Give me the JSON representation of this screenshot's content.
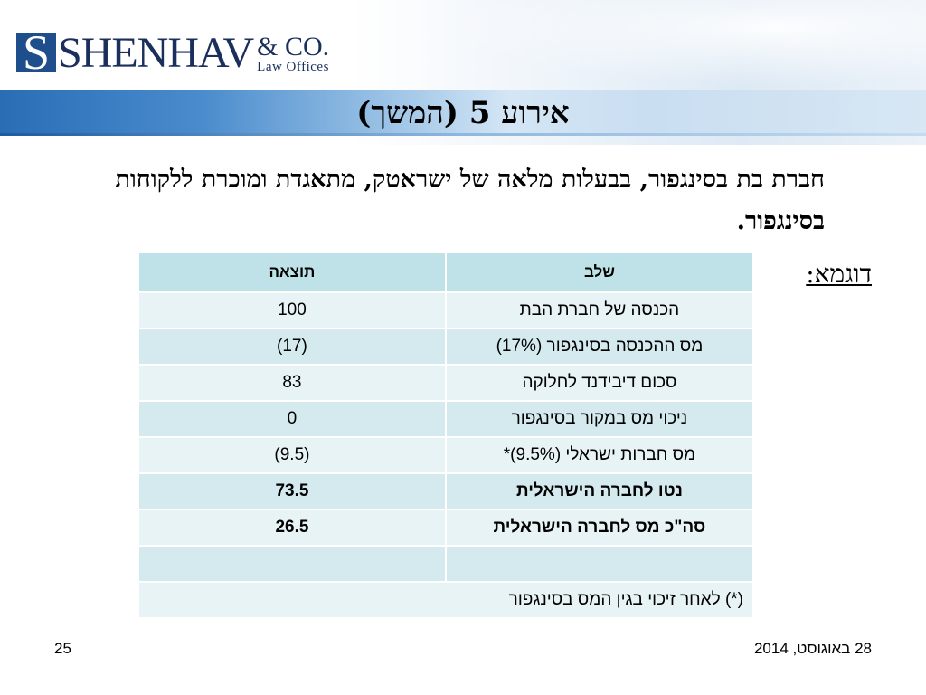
{
  "logo": {
    "mark": "S",
    "name": "SHENHAV",
    "co": "& CO.",
    "subtitle": "Law Offices"
  },
  "slide": {
    "title": "אירוע 5 (המשך)",
    "intro": "חברת בת בסינגפור, בבעלות מלאה של ישראטק, מתאגדת ומוכרת ללקוחות בסינגפור.",
    "example_label": "דוגמא:"
  },
  "table": {
    "headers": [
      "שלב",
      "תוצאה"
    ],
    "rows": [
      {
        "step": "הכנסה של חברת הבת",
        "result": "100",
        "bold": false
      },
      {
        "step": "מס ההכנסה בסינגפור (17%)",
        "result": "(17)",
        "bold": false
      },
      {
        "step": "סכום דיבידנד לחלוקה",
        "result": "83",
        "bold": false
      },
      {
        "step": "ניכוי מס במקור בסינגפור",
        "result": "0",
        "bold": false
      },
      {
        "step": "מס חברות ישראלי (9.5%)*",
        "result": "(9.5)",
        "bold": false
      },
      {
        "step": "נטו לחברה הישראלית",
        "result": "73.5",
        "bold": true
      },
      {
        "step": "סה\"כ מס לחברה הישראלית",
        "result": "26.5",
        "bold": true
      },
      {
        "step": "",
        "result": "",
        "bold": false
      }
    ],
    "note": "(*) לאחר זיכוי בגין המס בסינגפור"
  },
  "footer": {
    "date": "28 באוגוסט, 2014",
    "page": "25"
  }
}
